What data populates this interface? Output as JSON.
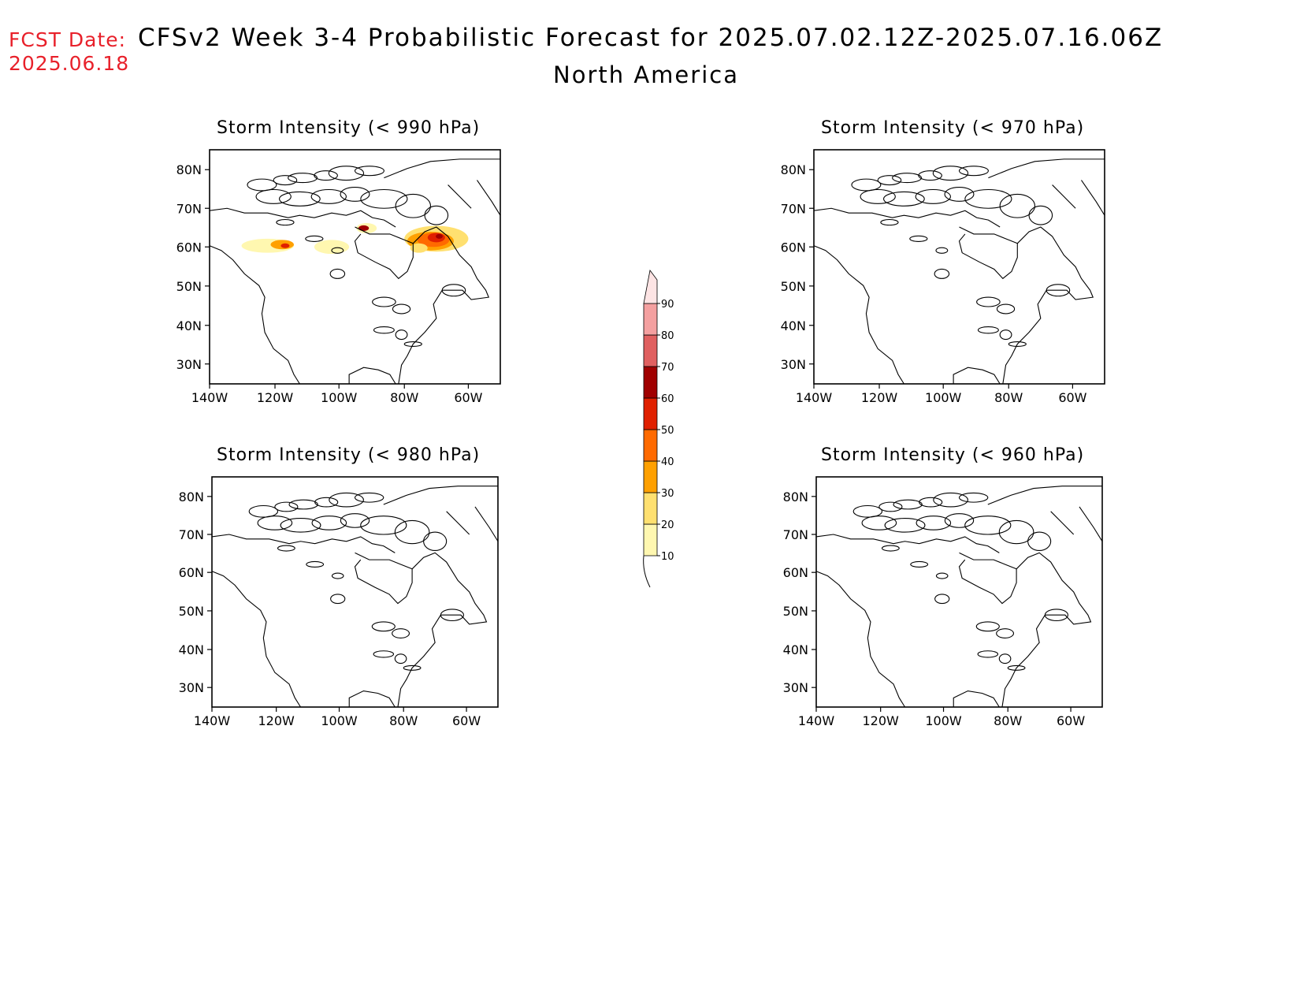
{
  "header": {
    "fcst_label": "FCST Date:",
    "fcst_date": "2025.06.18",
    "title": "CFSv2 Week 3-4 Probabilistic Forecast for 2025.07.02.12Z-2025.07.16.06Z",
    "region": "North America"
  },
  "panels": [
    {
      "title": "Storm Intensity (< 990 hPa)"
    },
    {
      "title": "Storm Intensity (< 970 hPa)"
    },
    {
      "title": "Storm Intensity (< 980 hPa)"
    },
    {
      "title": "Storm Intensity (< 960 hPa)"
    }
  ],
  "axes": {
    "lat_ticks": [
      "80N",
      "70N",
      "60N",
      "50N",
      "40N",
      "30N"
    ],
    "lon_ticks": [
      "140W",
      "120W",
      "100W",
      "80W",
      "60W"
    ]
  },
  "colorbar": {
    "labels": [
      "10",
      "20",
      "30",
      "40",
      "50",
      "60",
      "70",
      "80",
      "90"
    ],
    "colors": [
      "#fff7b0",
      "#ffe070",
      "#ffa000",
      "#ff6a00",
      "#e02000",
      "#a00000",
      "#e06060",
      "#f4a0a0",
      "#fde4e4"
    ]
  },
  "colors": {
    "fcst_red": "#e8202a"
  }
}
